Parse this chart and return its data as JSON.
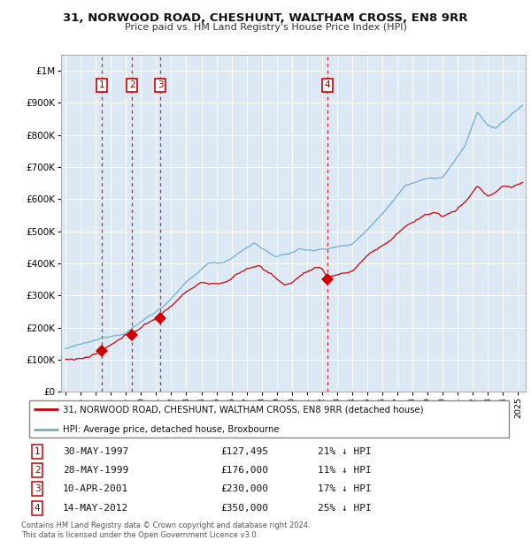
{
  "title": "31, NORWOOD ROAD, CHESHUNT, WALTHAM CROSS, EN8 9RR",
  "subtitle": "Price paid vs. HM Land Registry's House Price Index (HPI)",
  "legend_line1": "31, NORWOOD ROAD, CHESHUNT, WALTHAM CROSS, EN8 9RR (detached house)",
  "legend_line2": "HPI: Average price, detached house, Broxbourne",
  "footer1": "Contains HM Land Registry data © Crown copyright and database right 2024.",
  "footer2": "This data is licensed under the Open Government Licence v3.0.",
  "transactions": [
    {
      "num": 1,
      "date": "30-MAY-1997",
      "price": 127495,
      "pct": "21%",
      "year_x": 1997.41
    },
    {
      "num": 2,
      "date": "28-MAY-1999",
      "price": 176000,
      "pct": "11%",
      "year_x": 1999.41
    },
    {
      "num": 3,
      "date": "10-APR-2001",
      "price": 230000,
      "pct": "17%",
      "year_x": 2001.27
    },
    {
      "num": 4,
      "date": "14-MAY-2012",
      "price": 350000,
      "pct": "25%",
      "year_x": 2012.37
    }
  ],
  "hpi_color": "#6baed6",
  "price_color": "#cc0000",
  "background_color": "#dce9f5",
  "grid_color": "#ffffff",
  "dashed_line_color": "#cc0000",
  "ylim": [
    0,
    1050000
  ],
  "xlim": [
    1994.7,
    2025.5
  ],
  "yticks": [
    0,
    100000,
    200000,
    300000,
    400000,
    500000,
    600000,
    700000,
    800000,
    900000,
    1000000
  ],
  "ytick_labels": [
    "£0",
    "£100K",
    "£200K",
    "£300K",
    "£400K",
    "£500K",
    "£600K",
    "£700K",
    "£800K",
    "£900K",
    "£1M"
  ]
}
